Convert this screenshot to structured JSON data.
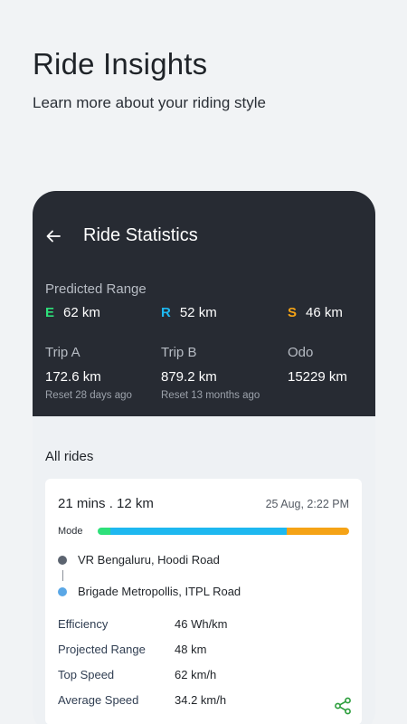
{
  "hero": {
    "title": "Ride Insights",
    "subtitle": "Learn more about your riding style"
  },
  "header": {
    "back_icon": "arrow-left-icon",
    "title": "Ride Statistics"
  },
  "predicted_range": {
    "label": "Predicted Range",
    "modes": [
      {
        "letter": "E",
        "value": "62 km",
        "color": "#2ee07a"
      },
      {
        "letter": "R",
        "value": "52 km",
        "color": "#1eb8f0"
      },
      {
        "letter": "S",
        "value": "46 km",
        "color": "#f5a316"
      }
    ]
  },
  "trips": [
    {
      "label": "Trip A",
      "value": "172.6 km",
      "reset": "Reset 28 days ago"
    },
    {
      "label": "Trip B",
      "value": "879.2 km",
      "reset": "Reset 13 months ago"
    },
    {
      "label": "Odo",
      "value": "15229 km",
      "reset": ""
    }
  ],
  "all_rides": {
    "title": "All rides",
    "ride": {
      "duration_distance": "21 mins . 12 km",
      "date": "25 Aug, 2:22 PM",
      "mode_label": "Mode",
      "mode_split": [
        {
          "fraction": 0.05,
          "color": "#2ee07a"
        },
        {
          "fraction": 0.7,
          "color": "#1eb8f0"
        },
        {
          "fraction": 0.25,
          "color": "#f5a316"
        }
      ],
      "start": {
        "name": "VR Bengaluru, Hoodi Road",
        "color": "#5c6470"
      },
      "end": {
        "name": "Brigade Metropollis, ITPL Road",
        "color": "#5aa7e6"
      },
      "stats": [
        {
          "label": "Efficiency",
          "value": "46 Wh/km"
        },
        {
          "label": "Projected Range",
          "value": "48 km"
        },
        {
          "label": "Top Speed",
          "value": "62 km/h"
        },
        {
          "label": "Average Speed",
          "value": "34.2 km/h"
        }
      ],
      "share_icon": "share-icon",
      "share_color": "#2a9d3a"
    }
  }
}
